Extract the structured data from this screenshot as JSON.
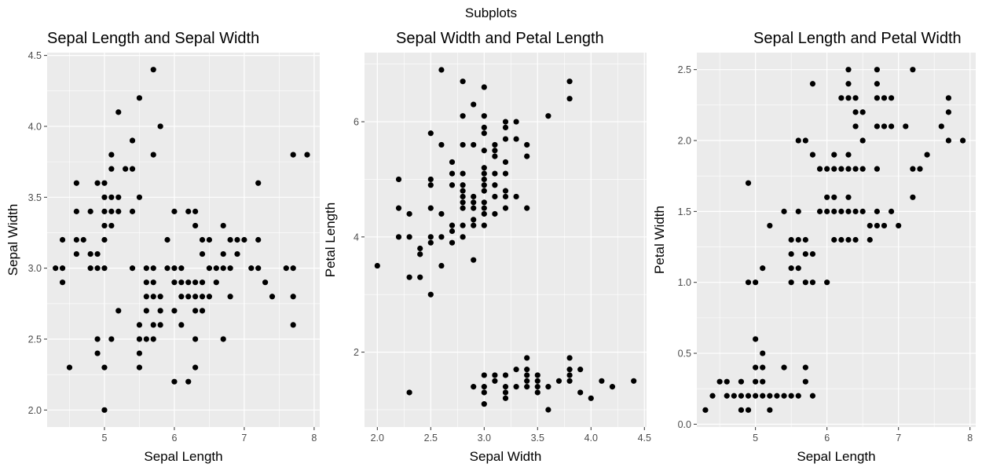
{
  "figure_title": "Subplots",
  "chart_data": [
    {
      "type": "scatter",
      "title": "Sepal Length and Sepal Width",
      "xlabel": "Sepal Length",
      "ylabel": "Sepal Width",
      "xlim": [
        4.18,
        8.08
      ],
      "ylim": [
        1.88,
        4.52
      ],
      "xticks": [
        5,
        6,
        7,
        8
      ],
      "xtick_labels": [
        "5",
        "6",
        "7",
        "8"
      ],
      "yticks": [
        2.0,
        2.5,
        3.0,
        3.5,
        4.0,
        4.5
      ],
      "ytick_labels": [
        "2.0",
        "2.5",
        "3.0",
        "3.5",
        "4.0",
        "4.5"
      ],
      "grid": true,
      "points": [
        [
          4.3,
          3.0
        ],
        [
          4.4,
          3.0
        ],
        [
          4.4,
          2.9
        ],
        [
          4.4,
          3.2
        ],
        [
          4.5,
          2.3
        ],
        [
          4.6,
          3.6
        ],
        [
          4.6,
          3.4
        ],
        [
          4.6,
          3.1
        ],
        [
          4.6,
          3.2
        ],
        [
          4.7,
          3.2
        ],
        [
          4.8,
          3.4
        ],
        [
          4.8,
          3.1
        ],
        [
          4.8,
          3.0
        ],
        [
          4.9,
          3.6
        ],
        [
          4.9,
          3.1
        ],
        [
          4.9,
          3.0
        ],
        [
          4.9,
          2.5
        ],
        [
          4.9,
          2.4
        ],
        [
          5.0,
          3.6
        ],
        [
          5.0,
          3.5
        ],
        [
          5.0,
          3.4
        ],
        [
          5.0,
          3.3
        ],
        [
          5.0,
          3.2
        ],
        [
          5.0,
          3.0
        ],
        [
          5.0,
          2.3
        ],
        [
          5.0,
          2.0
        ],
        [
          5.1,
          3.8
        ],
        [
          5.1,
          3.7
        ],
        [
          5.1,
          3.5
        ],
        [
          5.1,
          3.4
        ],
        [
          5.1,
          3.3
        ],
        [
          5.1,
          2.5
        ],
        [
          5.2,
          4.1
        ],
        [
          5.2,
          3.5
        ],
        [
          5.2,
          3.4
        ],
        [
          5.2,
          2.7
        ],
        [
          5.3,
          3.7
        ],
        [
          5.4,
          3.9
        ],
        [
          5.4,
          3.7
        ],
        [
          5.4,
          3.4
        ],
        [
          5.4,
          3.0
        ],
        [
          5.5,
          4.2
        ],
        [
          5.5,
          3.5
        ],
        [
          5.5,
          2.6
        ],
        [
          5.5,
          2.5
        ],
        [
          5.5,
          2.4
        ],
        [
          5.5,
          2.3
        ],
        [
          5.6,
          3.0
        ],
        [
          5.6,
          2.9
        ],
        [
          5.6,
          2.8
        ],
        [
          5.6,
          2.7
        ],
        [
          5.6,
          2.5
        ],
        [
          5.7,
          4.4
        ],
        [
          5.7,
          3.8
        ],
        [
          5.7,
          3.0
        ],
        [
          5.7,
          2.9
        ],
        [
          5.7,
          2.8
        ],
        [
          5.7,
          2.6
        ],
        [
          5.7,
          2.5
        ],
        [
          5.8,
          4.0
        ],
        [
          5.8,
          2.8
        ],
        [
          5.8,
          2.7
        ],
        [
          5.8,
          2.6
        ],
        [
          5.9,
          3.2
        ],
        [
          5.9,
          3.0
        ],
        [
          6.0,
          3.4
        ],
        [
          6.0,
          3.0
        ],
        [
          6.0,
          2.9
        ],
        [
          6.0,
          2.7
        ],
        [
          6.0,
          2.2
        ],
        [
          6.1,
          3.0
        ],
        [
          6.1,
          2.9
        ],
        [
          6.1,
          2.8
        ],
        [
          6.1,
          2.6
        ],
        [
          6.2,
          3.4
        ],
        [
          6.2,
          2.9
        ],
        [
          6.2,
          2.8
        ],
        [
          6.2,
          2.2
        ],
        [
          6.3,
          3.4
        ],
        [
          6.3,
          3.3
        ],
        [
          6.3,
          2.9
        ],
        [
          6.3,
          2.8
        ],
        [
          6.3,
          2.7
        ],
        [
          6.3,
          2.5
        ],
        [
          6.3,
          2.3
        ],
        [
          6.4,
          3.2
        ],
        [
          6.4,
          3.1
        ],
        [
          6.4,
          2.9
        ],
        [
          6.4,
          2.8
        ],
        [
          6.4,
          2.7
        ],
        [
          6.5,
          3.2
        ],
        [
          6.5,
          3.0
        ],
        [
          6.5,
          2.8
        ],
        [
          6.6,
          3.0
        ],
        [
          6.6,
          2.9
        ],
        [
          6.7,
          3.3
        ],
        [
          6.7,
          3.1
        ],
        [
          6.7,
          3.0
        ],
        [
          6.7,
          2.5
        ],
        [
          6.8,
          3.2
        ],
        [
          6.8,
          3.0
        ],
        [
          6.8,
          2.8
        ],
        [
          6.9,
          3.2
        ],
        [
          6.9,
          3.1
        ],
        [
          7.0,
          3.2
        ],
        [
          7.1,
          3.0
        ],
        [
          7.2,
          3.6
        ],
        [
          7.2,
          3.2
        ],
        [
          7.2,
          3.0
        ],
        [
          7.3,
          2.9
        ],
        [
          7.4,
          2.8
        ],
        [
          7.6,
          3.0
        ],
        [
          7.7,
          3.8
        ],
        [
          7.7,
          3.0
        ],
        [
          7.7,
          2.8
        ],
        [
          7.7,
          2.6
        ],
        [
          7.9,
          3.8
        ]
      ]
    },
    {
      "type": "scatter",
      "title": "Sepal Width and Petal Length",
      "xlabel": "Sepal Width",
      "ylabel": "Petal Length",
      "xlim": [
        1.88,
        4.52
      ],
      "ylim": [
        0.7,
        7.2
      ],
      "xticks": [
        2.0,
        2.5,
        3.0,
        3.5,
        4.0,
        4.5
      ],
      "xtick_labels": [
        "2.0",
        "2.5",
        "3.0",
        "3.5",
        "4.0",
        "4.5"
      ],
      "yticks": [
        2,
        4,
        6
      ],
      "ytick_labels": [
        "2",
        "4",
        "6"
      ],
      "grid": true,
      "points": [
        [
          2.0,
          3.5
        ],
        [
          2.2,
          5.0
        ],
        [
          2.2,
          4.5
        ],
        [
          2.2,
          4.0
        ],
        [
          2.3,
          4.4
        ],
        [
          2.3,
          4.0
        ],
        [
          2.3,
          3.3
        ],
        [
          2.3,
          1.3
        ],
        [
          2.4,
          3.8
        ],
        [
          2.4,
          3.7
        ],
        [
          2.4,
          3.3
        ],
        [
          2.5,
          5.8
        ],
        [
          2.5,
          5.0
        ],
        [
          2.5,
          4.9
        ],
        [
          2.5,
          4.5
        ],
        [
          2.5,
          4.0
        ],
        [
          2.5,
          3.9
        ],
        [
          2.5,
          3.0
        ],
        [
          2.6,
          6.9
        ],
        [
          2.6,
          5.6
        ],
        [
          2.6,
          4.4
        ],
        [
          2.6,
          4.0
        ],
        [
          2.6,
          3.5
        ],
        [
          2.7,
          5.3
        ],
        [
          2.7,
          5.1
        ],
        [
          2.7,
          4.9
        ],
        [
          2.7,
          4.2
        ],
        [
          2.7,
          4.1
        ],
        [
          2.7,
          3.9
        ],
        [
          2.8,
          6.7
        ],
        [
          2.8,
          6.1
        ],
        [
          2.8,
          5.6
        ],
        [
          2.8,
          5.1
        ],
        [
          2.8,
          4.9
        ],
        [
          2.8,
          4.8
        ],
        [
          2.8,
          4.7
        ],
        [
          2.8,
          4.6
        ],
        [
          2.8,
          4.5
        ],
        [
          2.8,
          4.2
        ],
        [
          2.8,
          4.0
        ],
        [
          2.9,
          6.3
        ],
        [
          2.9,
          5.6
        ],
        [
          2.9,
          4.7
        ],
        [
          2.9,
          4.6
        ],
        [
          2.9,
          4.5
        ],
        [
          2.9,
          4.3
        ],
        [
          2.9,
          4.2
        ],
        [
          2.9,
          3.6
        ],
        [
          2.9,
          1.4
        ],
        [
          3.0,
          6.6
        ],
        [
          3.0,
          6.1
        ],
        [
          3.0,
          5.9
        ],
        [
          3.0,
          5.8
        ],
        [
          3.0,
          5.5
        ],
        [
          3.0,
          5.2
        ],
        [
          3.0,
          5.1
        ],
        [
          3.0,
          5.0
        ],
        [
          3.0,
          4.9
        ],
        [
          3.0,
          4.8
        ],
        [
          3.0,
          4.6
        ],
        [
          3.0,
          4.5
        ],
        [
          3.0,
          4.4
        ],
        [
          3.0,
          4.2
        ],
        [
          3.0,
          1.6
        ],
        [
          3.0,
          1.4
        ],
        [
          3.0,
          1.3
        ],
        [
          3.0,
          1.1
        ],
        [
          3.1,
          5.6
        ],
        [
          3.1,
          5.5
        ],
        [
          3.1,
          5.4
        ],
        [
          3.1,
          5.1
        ],
        [
          3.1,
          4.9
        ],
        [
          3.1,
          4.7
        ],
        [
          3.1,
          4.4
        ],
        [
          3.1,
          1.6
        ],
        [
          3.1,
          1.5
        ],
        [
          3.2,
          6.0
        ],
        [
          3.2,
          5.9
        ],
        [
          3.2,
          5.7
        ],
        [
          3.2,
          5.3
        ],
        [
          3.2,
          5.1
        ],
        [
          3.2,
          4.8
        ],
        [
          3.2,
          4.7
        ],
        [
          3.2,
          4.5
        ],
        [
          3.2,
          1.6
        ],
        [
          3.2,
          1.4
        ],
        [
          3.2,
          1.3
        ],
        [
          3.2,
          1.2
        ],
        [
          3.3,
          6.0
        ],
        [
          3.3,
          5.7
        ],
        [
          3.3,
          4.7
        ],
        [
          3.3,
          1.7
        ],
        [
          3.3,
          1.4
        ],
        [
          3.4,
          5.6
        ],
        [
          3.4,
          5.4
        ],
        [
          3.4,
          4.5
        ],
        [
          3.4,
          1.9
        ],
        [
          3.4,
          1.7
        ],
        [
          3.4,
          1.6
        ],
        [
          3.4,
          1.5
        ],
        [
          3.4,
          1.4
        ],
        [
          3.5,
          1.6
        ],
        [
          3.5,
          1.5
        ],
        [
          3.5,
          1.4
        ],
        [
          3.5,
          1.3
        ],
        [
          3.6,
          6.1
        ],
        [
          3.6,
          1.4
        ],
        [
          3.6,
          1.0
        ],
        [
          3.7,
          1.5
        ],
        [
          3.8,
          6.7
        ],
        [
          3.8,
          6.4
        ],
        [
          3.8,
          1.9
        ],
        [
          3.8,
          1.7
        ],
        [
          3.8,
          1.6
        ],
        [
          3.8,
          1.5
        ],
        [
          3.9,
          1.7
        ],
        [
          3.9,
          1.3
        ],
        [
          4.0,
          1.2
        ],
        [
          4.1,
          1.5
        ],
        [
          4.2,
          1.4
        ],
        [
          4.4,
          1.5
        ]
      ]
    },
    {
      "type": "scatter",
      "title": "Sepal Length and Petal Width",
      "xlabel": "Sepal Length",
      "ylabel": "Petal Width",
      "xlim": [
        4.18,
        8.08
      ],
      "ylim": [
        -0.02,
        2.62
      ],
      "xticks": [
        5,
        6,
        7,
        8
      ],
      "xtick_labels": [
        "5",
        "6",
        "7",
        "8"
      ],
      "yticks": [
        0.0,
        0.5,
        1.0,
        1.5,
        2.0,
        2.5
      ],
      "ytick_labels": [
        "0.0",
        "0.5",
        "1.0",
        "1.5",
        "2.0",
        "2.5"
      ],
      "grid": true,
      "points": [
        [
          4.3,
          0.1
        ],
        [
          4.4,
          0.2
        ],
        [
          4.5,
          0.3
        ],
        [
          4.6,
          0.3
        ],
        [
          4.6,
          0.2
        ],
        [
          4.7,
          0.2
        ],
        [
          4.8,
          0.3
        ],
        [
          4.8,
          0.2
        ],
        [
          4.8,
          0.1
        ],
        [
          4.9,
          1.7
        ],
        [
          4.9,
          1.0
        ],
        [
          4.9,
          0.2
        ],
        [
          4.9,
          0.1
        ],
        [
          5.0,
          1.0
        ],
        [
          5.0,
          0.6
        ],
        [
          5.0,
          0.4
        ],
        [
          5.0,
          0.3
        ],
        [
          5.0,
          0.2
        ],
        [
          5.1,
          1.1
        ],
        [
          5.1,
          0.5
        ],
        [
          5.1,
          0.4
        ],
        [
          5.1,
          0.3
        ],
        [
          5.1,
          0.2
        ],
        [
          5.2,
          1.4
        ],
        [
          5.2,
          0.2
        ],
        [
          5.2,
          0.1
        ],
        [
          5.3,
          0.2
        ],
        [
          5.4,
          1.5
        ],
        [
          5.4,
          0.4
        ],
        [
          5.4,
          0.2
        ],
        [
          5.5,
          1.3
        ],
        [
          5.5,
          1.2
        ],
        [
          5.5,
          1.1
        ],
        [
          5.5,
          1.0
        ],
        [
          5.5,
          0.2
        ],
        [
          5.6,
          2.0
        ],
        [
          5.6,
          1.5
        ],
        [
          5.6,
          1.3
        ],
        [
          5.6,
          1.1
        ],
        [
          5.6,
          0.2
        ],
        [
          5.7,
          2.0
        ],
        [
          5.7,
          1.3
        ],
        [
          5.7,
          1.2
        ],
        [
          5.7,
          1.0
        ],
        [
          5.7,
          0.4
        ],
        [
          5.7,
          0.3
        ],
        [
          5.8,
          2.4
        ],
        [
          5.8,
          1.9
        ],
        [
          5.8,
          1.2
        ],
        [
          5.8,
          1.0
        ],
        [
          5.8,
          0.2
        ],
        [
          5.9,
          1.8
        ],
        [
          5.9,
          1.5
        ],
        [
          6.0,
          1.8
        ],
        [
          6.0,
          1.6
        ],
        [
          6.0,
          1.5
        ],
        [
          6.0,
          1.0
        ],
        [
          6.1,
          1.9
        ],
        [
          6.1,
          1.8
        ],
        [
          6.1,
          1.6
        ],
        [
          6.1,
          1.5
        ],
        [
          6.1,
          1.3
        ],
        [
          6.2,
          2.3
        ],
        [
          6.2,
          1.8
        ],
        [
          6.2,
          1.5
        ],
        [
          6.2,
          1.3
        ],
        [
          6.3,
          2.5
        ],
        [
          6.3,
          2.4
        ],
        [
          6.3,
          2.3
        ],
        [
          6.3,
          1.9
        ],
        [
          6.3,
          1.8
        ],
        [
          6.3,
          1.6
        ],
        [
          6.3,
          1.5
        ],
        [
          6.3,
          1.3
        ],
        [
          6.4,
          2.3
        ],
        [
          6.4,
          2.2
        ],
        [
          6.4,
          2.1
        ],
        [
          6.4,
          1.8
        ],
        [
          6.4,
          1.5
        ],
        [
          6.4,
          1.3
        ],
        [
          6.5,
          2.2
        ],
        [
          6.5,
          2.0
        ],
        [
          6.5,
          1.8
        ],
        [
          6.5,
          1.5
        ],
        [
          6.6,
          1.4
        ],
        [
          6.6,
          1.3
        ],
        [
          6.7,
          2.5
        ],
        [
          6.7,
          2.4
        ],
        [
          6.7,
          2.3
        ],
        [
          6.7,
          2.1
        ],
        [
          6.7,
          1.8
        ],
        [
          6.7,
          1.5
        ],
        [
          6.7,
          1.4
        ],
        [
          6.8,
          2.3
        ],
        [
          6.8,
          2.1
        ],
        [
          6.8,
          1.4
        ],
        [
          6.9,
          2.3
        ],
        [
          6.9,
          2.1
        ],
        [
          6.9,
          1.5
        ],
        [
          7.0,
          1.4
        ],
        [
          7.1,
          2.1
        ],
        [
          7.2,
          2.5
        ],
        [
          7.2,
          1.8
        ],
        [
          7.2,
          1.6
        ],
        [
          7.3,
          1.8
        ],
        [
          7.4,
          1.9
        ],
        [
          7.6,
          2.1
        ],
        [
          7.7,
          2.3
        ],
        [
          7.7,
          2.2
        ],
        [
          7.7,
          2.0
        ],
        [
          7.9,
          2.0
        ]
      ]
    }
  ]
}
